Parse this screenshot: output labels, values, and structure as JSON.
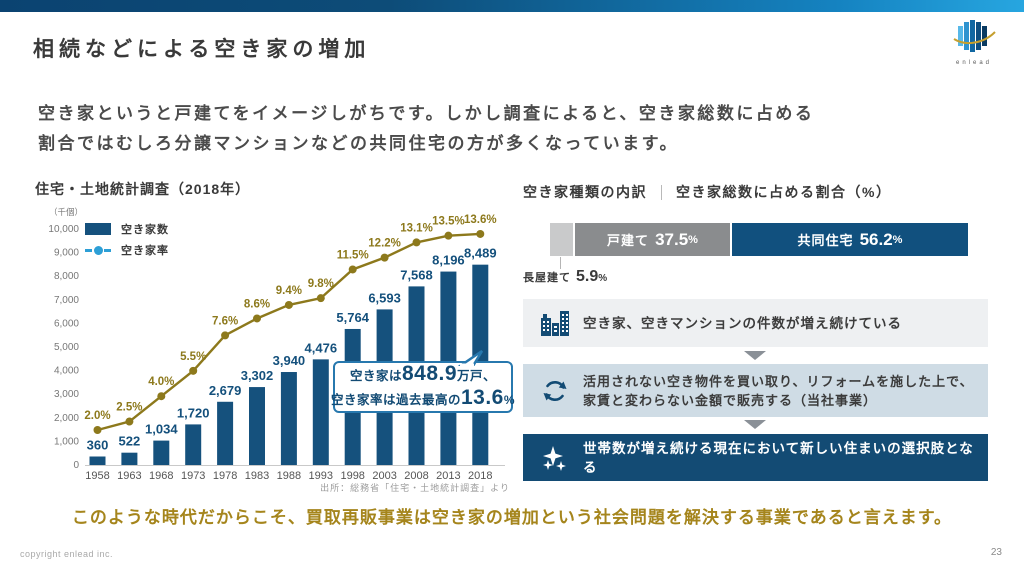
{
  "slide": {
    "title": "相続などによる空き家の増加",
    "logo_text": "enlead",
    "page_number": "23",
    "copyright": "copyright enlead inc."
  },
  "intro": {
    "line1": "空き家というと戸建てをイメージしがちです。しかし調査によると、空き家総数に占める",
    "line2": "割合ではむしろ分譲マンションなどの共同住宅の方が多くなっています。"
  },
  "chart_data": {
    "type": "bar+line",
    "title": "住宅・土地統計調査（2018年）",
    "unit_label": "（千個）",
    "categories": [
      "1958",
      "1963",
      "1968",
      "1973",
      "1978",
      "1983",
      "1988",
      "1993",
      "1998",
      "2003",
      "2008",
      "2013",
      "2018"
    ],
    "series": [
      {
        "name": "空き家数",
        "type": "bar",
        "color": "#15517d",
        "values": [
          360,
          522,
          1034,
          1720,
          2679,
          3302,
          3940,
          4476,
          5764,
          6593,
          7568,
          8196,
          8489
        ]
      },
      {
        "name": "空き家率",
        "type": "line",
        "color": "#8d791c",
        "legend_color": "#2d9fd6",
        "values": [
          2.0,
          2.5,
          4.0,
          5.5,
          7.6,
          8.6,
          9.4,
          9.8,
          11.5,
          12.2,
          13.1,
          13.5,
          13.6
        ]
      }
    ],
    "ylim": [
      0,
      10000
    ],
    "ytick_step": 1000,
    "legend_position": "upper-left",
    "grid": false,
    "source": "出所：総務省「住宅・土地統計調査」より",
    "callout": {
      "line1_pre": "空き家は",
      "line1_big": "848.9",
      "line1_post": "万戸、",
      "line2_pre": "空き家率は過去最高の",
      "line2_big": "13.6",
      "line2_post": "%"
    }
  },
  "breakdown": {
    "header_left": "空き家種類の内訳",
    "header_right": "空き家総数に占める割合（%）",
    "percent_sign": "%",
    "segments": [
      {
        "label": "長屋建て",
        "pct": "5.9",
        "color": "#c9cacb"
      },
      {
        "label": "戸建て",
        "pct": "37.5",
        "color": "#8a8c8e"
      },
      {
        "label": "共同住宅",
        "pct": "56.2",
        "color": "#11507e"
      }
    ]
  },
  "flow": {
    "steps": [
      {
        "icon": "buildings-icon",
        "bg": "#eef0f2",
        "lines": [
          "空き家、空きマンションの件数が増え続けている"
        ]
      },
      {
        "icon": "recycle-icon",
        "bg": "#cfdce5",
        "lines": [
          "活用されない空き物件を買い取り、リフォームを施した上で、",
          "家賃と変わらない金額で販売する（当社事業）"
        ]
      },
      {
        "icon": "sparkles-icon",
        "bg": "#134b74",
        "lines": [
          "世帯数が増え続ける現在において新しい住まいの選択肢となる"
        ]
      }
    ]
  },
  "conclusion": "このような時代だからこそ、買取再販事業は空き家の増加という社会問題を解決する事業であると言えます。",
  "colors": {
    "topbar_left": "#0b4371",
    "topbar_right": "#27a6e0",
    "accent_navy": "#134b74",
    "bar_navy": "#15517d",
    "line_olive": "#8d791c",
    "legend_line_blue": "#2d9fd6",
    "gold_text": "#a5851c",
    "box1_bg": "#eef0f2",
    "box2_bg": "#cfdce5",
    "box3_bg": "#134b74"
  }
}
